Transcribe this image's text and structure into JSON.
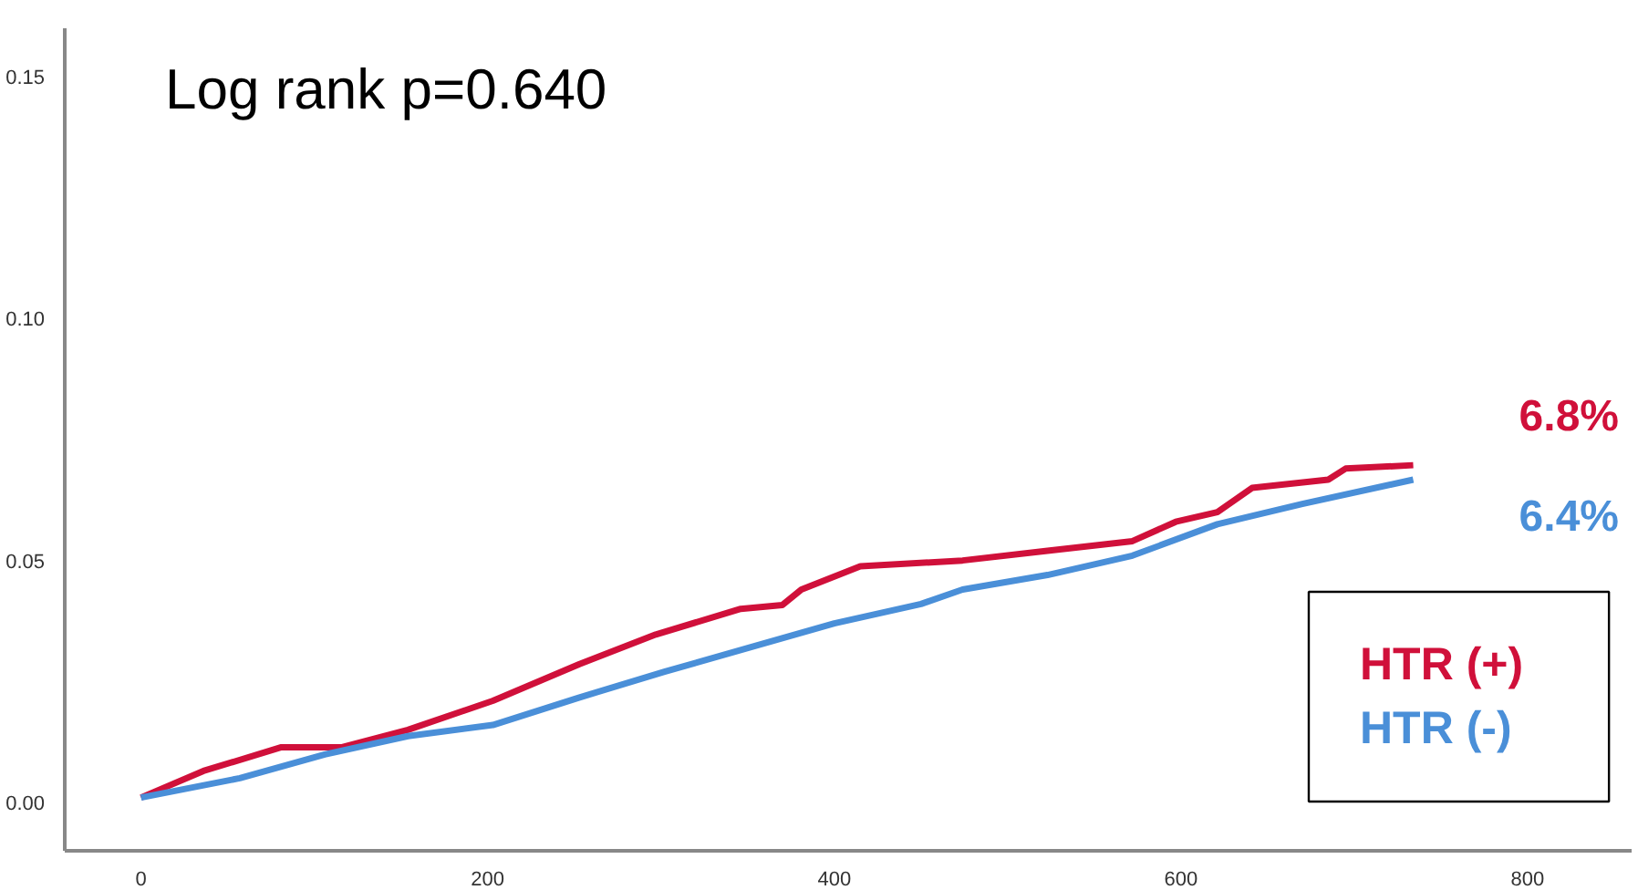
{
  "chart_data": {
    "type": "line",
    "title": "Log rank p=0.640",
    "xlim": [
      -44,
      860
    ],
    "xticks": [
      0,
      200,
      400,
      600,
      800
    ],
    "ylim": [
      -0.01,
      0.16
    ],
    "yticks": [
      {
        "value": 0,
        "label": "0.00"
      },
      {
        "value": 0.05,
        "label": "0.05"
      },
      {
        "value": 0.1,
        "label": "0.10"
      },
      {
        "value": 0.15,
        "label": "0.15"
      }
    ],
    "grid": false,
    "legend": "bottom right",
    "series": [
      {
        "name": "HTR (+)",
        "color": "#d0103a",
        "x": [
          0,
          36,
          81,
          116,
          154,
          203,
          253,
          297,
          346,
          370,
          381,
          415,
          474,
          523,
          572,
          597,
          621,
          641,
          685,
          695,
          734
        ],
        "values": [
          0.001,
          0.0065,
          0.0114,
          0.0114,
          0.015,
          0.021,
          0.0286,
          0.0347,
          0.04,
          0.0408,
          0.044,
          0.0488,
          0.05,
          0.052,
          0.054,
          0.058,
          0.06,
          0.065,
          0.0667,
          0.069,
          0.0697
        ]
      },
      {
        "name": "HTR (-)",
        "color": "#4a8fd8",
        "x": [
          0,
          57,
          106,
          154,
          203,
          253,
          302,
          351,
          400,
          450,
          474,
          523,
          572,
          621,
          670,
          734
        ],
        "values": [
          0.001,
          0.005,
          0.0099,
          0.0137,
          0.016,
          0.0217,
          0.027,
          0.032,
          0.037,
          0.041,
          0.044,
          0.047,
          0.051,
          0.0575,
          0.0617,
          0.0667
        ]
      }
    ],
    "annotations": [
      "6.8%",
      "6.4%"
    ]
  }
}
